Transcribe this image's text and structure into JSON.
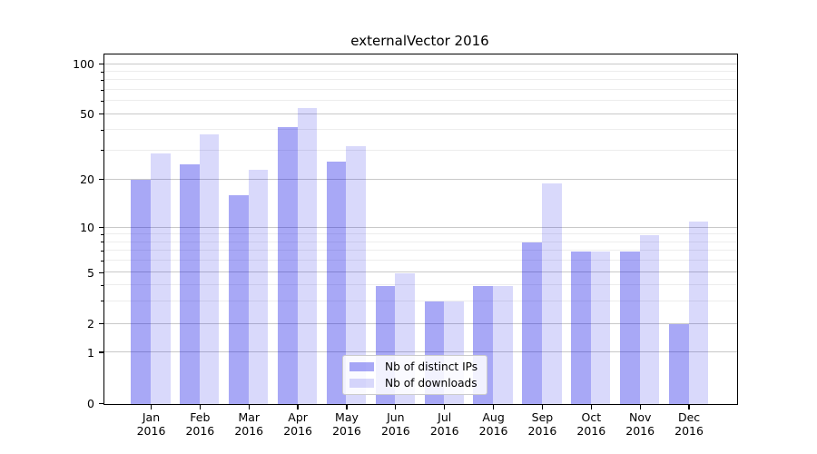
{
  "chart_data": {
    "type": "bar",
    "title": "externalVector 2016",
    "categories": [
      [
        "Jan",
        "2016"
      ],
      [
        "Feb",
        "2016"
      ],
      [
        "Mar",
        "2016"
      ],
      [
        "Apr",
        "2016"
      ],
      [
        "May",
        "2016"
      ],
      [
        "Jun",
        "2016"
      ],
      [
        "Jul",
        "2016"
      ],
      [
        "Aug",
        "2016"
      ],
      [
        "Sep",
        "2016"
      ],
      [
        "Oct",
        "2016"
      ],
      [
        "Nov",
        "2016"
      ],
      [
        "Dec",
        "2016"
      ]
    ],
    "series": [
      {
        "name": "Nb of distinct IPs",
        "values": [
          20,
          25,
          16,
          42,
          26,
          4,
          3,
          4,
          8,
          7,
          7,
          2
        ]
      },
      {
        "name": "Nb of downloads",
        "values": [
          29,
          38,
          23,
          55,
          32,
          5,
          3,
          4,
          19,
          7,
          9,
          11
        ]
      }
    ],
    "y_axis": {
      "scale": "symlog",
      "ylim": [
        0,
        114
      ],
      "ticks": [
        {
          "label": "0",
          "value": 0
        },
        {
          "label": "1",
          "value": 1
        },
        {
          "label": "2",
          "value": 2
        },
        {
          "label": "5",
          "value": 5
        },
        {
          "label": "10",
          "value": 10
        },
        {
          "label": "20",
          "value": 20
        },
        {
          "label": "50",
          "value": 50
        },
        {
          "label": "100",
          "value": 100
        }
      ],
      "minor_ticks": [
        3,
        4,
        6,
        7,
        8,
        9,
        30,
        40,
        60,
        70,
        80,
        90
      ]
    },
    "grid": true,
    "legend_position": "lower center"
  },
  "colors": {
    "bar_distinct_ips": "rgba(0,0,230,0.34)",
    "bar_downloads": "rgba(0,0,230,0.15)",
    "grid_major": "#c9c9c9",
    "grid_minor": "#ededed",
    "axis": "#000000",
    "legend_border": "#cccccc",
    "text": "#000000"
  }
}
